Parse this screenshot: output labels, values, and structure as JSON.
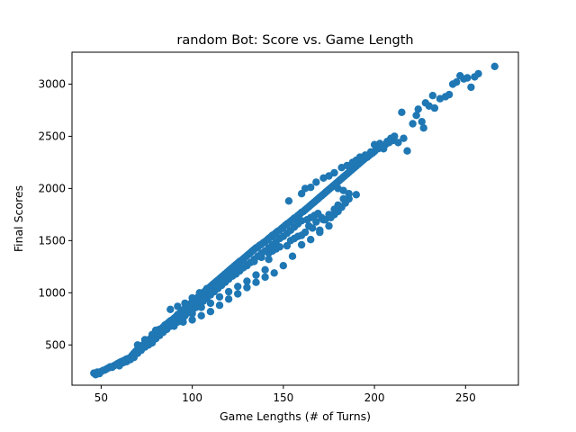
{
  "chart_data": {
    "type": "scatter",
    "title": "random Bot: Score vs. Game Length",
    "xlabel": "Game Lengths (# of Turns)",
    "ylabel": "Final Scores",
    "xlim": [
      34,
      279
    ],
    "ylim": [
      114,
      3306
    ],
    "xticks": [
      50,
      100,
      150,
      200,
      250
    ],
    "yticks": [
      500,
      1000,
      1500,
      2000,
      2500,
      3000
    ],
    "marker_color": "#1f77b4",
    "grid": false,
    "legend": "none",
    "points": [
      [
        46,
        230
      ],
      [
        47,
        215
      ],
      [
        48,
        240
      ],
      [
        49,
        225
      ],
      [
        50,
        245
      ],
      [
        51,
        255
      ],
      [
        52,
        260
      ],
      [
        53,
        270
      ],
      [
        54,
        280
      ],
      [
        55,
        290
      ],
      [
        56,
        285
      ],
      [
        57,
        300
      ],
      [
        58,
        310
      ],
      [
        59,
        320
      ],
      [
        60,
        330
      ],
      [
        61,
        340
      ],
      [
        62,
        345
      ],
      [
        63,
        355
      ],
      [
        64,
        365
      ],
      [
        65,
        370
      ],
      [
        66,
        380
      ],
      [
        67,
        400
      ],
      [
        68,
        420
      ],
      [
        69,
        440
      ],
      [
        70,
        455
      ],
      [
        71,
        470
      ],
      [
        72,
        490
      ],
      [
        73,
        500
      ],
      [
        74,
        515
      ],
      [
        75,
        530
      ],
      [
        76,
        545
      ],
      [
        77,
        560
      ],
      [
        78,
        575
      ],
      [
        79,
        590
      ],
      [
        80,
        605
      ],
      [
        81,
        620
      ],
      [
        82,
        640
      ],
      [
        83,
        655
      ],
      [
        84,
        670
      ],
      [
        85,
        690
      ],
      [
        86,
        700
      ],
      [
        87,
        715
      ],
      [
        88,
        730
      ],
      [
        89,
        740
      ],
      [
        90,
        755
      ],
      [
        91,
        770
      ],
      [
        92,
        790
      ],
      [
        93,
        800
      ],
      [
        94,
        815
      ],
      [
        95,
        830
      ],
      [
        96,
        850
      ],
      [
        97,
        865
      ],
      [
        98,
        880
      ],
      [
        99,
        895
      ],
      [
        100,
        910
      ],
      [
        101,
        925
      ],
      [
        102,
        940
      ],
      [
        103,
        955
      ],
      [
        104,
        970
      ],
      [
        105,
        985
      ],
      [
        106,
        1000
      ],
      [
        107,
        1015
      ],
      [
        108,
        1030
      ],
      [
        109,
        1045
      ],
      [
        110,
        1060
      ],
      [
        111,
        1075
      ],
      [
        112,
        1090
      ],
      [
        113,
        1105
      ],
      [
        114,
        1120
      ],
      [
        115,
        1135
      ],
      [
        116,
        1150
      ],
      [
        117,
        1165
      ],
      [
        118,
        1180
      ],
      [
        119,
        1195
      ],
      [
        120,
        1210
      ],
      [
        121,
        1225
      ],
      [
        122,
        1240
      ],
      [
        123,
        1255
      ],
      [
        124,
        1270
      ],
      [
        125,
        1285
      ],
      [
        126,
        1300
      ],
      [
        127,
        1310
      ],
      [
        128,
        1325
      ],
      [
        129,
        1340
      ],
      [
        130,
        1355
      ],
      [
        131,
        1370
      ],
      [
        132,
        1385
      ],
      [
        133,
        1400
      ],
      [
        134,
        1415
      ],
      [
        135,
        1430
      ],
      [
        136,
        1440
      ],
      [
        137,
        1455
      ],
      [
        138,
        1465
      ],
      [
        139,
        1480
      ],
      [
        140,
        1490
      ],
      [
        141,
        1505
      ],
      [
        142,
        1520
      ],
      [
        143,
        1535
      ],
      [
        144,
        1550
      ],
      [
        145,
        1560
      ],
      [
        146,
        1575
      ],
      [
        147,
        1590
      ],
      [
        148,
        1600
      ],
      [
        149,
        1615
      ],
      [
        150,
        1630
      ],
      [
        151,
        1645
      ],
      [
        152,
        1660
      ],
      [
        153,
        1670
      ],
      [
        154,
        1685
      ],
      [
        155,
        1700
      ],
      [
        156,
        1715
      ],
      [
        157,
        1725
      ],
      [
        158,
        1740
      ],
      [
        159,
        1755
      ],
      [
        160,
        1770
      ],
      [
        161,
        1780
      ],
      [
        162,
        1795
      ],
      [
        163,
        1810
      ],
      [
        164,
        1825
      ],
      [
        165,
        1840
      ],
      [
        166,
        1855
      ],
      [
        167,
        1870
      ],
      [
        168,
        1885
      ],
      [
        169,
        1900
      ],
      [
        170,
        1915
      ],
      [
        171,
        1930
      ],
      [
        172,
        1945
      ],
      [
        173,
        1960
      ],
      [
        174,
        1975
      ],
      [
        175,
        1990
      ],
      [
        176,
        2005
      ],
      [
        177,
        2020
      ],
      [
        178,
        2035
      ],
      [
        179,
        2050
      ],
      [
        180,
        2065
      ],
      [
        181,
        2080
      ],
      [
        182,
        2095
      ],
      [
        183,
        2110
      ],
      [
        184,
        2125
      ],
      [
        185,
        2140
      ],
      [
        186,
        2155
      ],
      [
        187,
        2170
      ],
      [
        188,
        2185
      ],
      [
        189,
        2200
      ],
      [
        190,
        2215
      ],
      [
        191,
        2230
      ],
      [
        192,
        2245
      ],
      [
        193,
        2260
      ],
      [
        194,
        2275
      ],
      [
        195,
        2290
      ],
      [
        196,
        2300
      ],
      [
        197,
        2315
      ],
      [
        198,
        2330
      ],
      [
        199,
        2340
      ],
      [
        200,
        2355
      ],
      [
        202,
        2380
      ],
      [
        204,
        2400
      ],
      [
        206,
        2420
      ],
      [
        208,
        2440
      ],
      [
        210,
        2460
      ],
      [
        60,
        300
      ],
      [
        62,
        330
      ],
      [
        64,
        340
      ],
      [
        66,
        360
      ],
      [
        68,
        380
      ],
      [
        70,
        420
      ],
      [
        72,
        450
      ],
      [
        74,
        480
      ],
      [
        76,
        500
      ],
      [
        78,
        520
      ],
      [
        80,
        560
      ],
      [
        82,
        590
      ],
      [
        84,
        620
      ],
      [
        86,
        650
      ],
      [
        88,
        680
      ],
      [
        90,
        700
      ],
      [
        92,
        720
      ],
      [
        94,
        750
      ],
      [
        96,
        780
      ],
      [
        98,
        810
      ],
      [
        100,
        830
      ],
      [
        102,
        860
      ],
      [
        104,
        890
      ],
      [
        106,
        920
      ],
      [
        108,
        950
      ],
      [
        110,
        980
      ],
      [
        112,
        1010
      ],
      [
        114,
        1040
      ],
      [
        116,
        1070
      ],
      [
        118,
        1100
      ],
      [
        120,
        1130
      ],
      [
        122,
        1160
      ],
      [
        124,
        1190
      ],
      [
        126,
        1210
      ],
      [
        128,
        1240
      ],
      [
        130,
        1270
      ],
      [
        132,
        1290
      ],
      [
        134,
        1320
      ],
      [
        136,
        1350
      ],
      [
        138,
        1380
      ],
      [
        140,
        1400
      ],
      [
        142,
        1430
      ],
      [
        144,
        1460
      ],
      [
        146,
        1490
      ],
      [
        148,
        1520
      ],
      [
        150,
        1540
      ],
      [
        152,
        1570
      ],
      [
        154,
        1600
      ],
      [
        156,
        1630
      ],
      [
        158,
        1660
      ],
      [
        160,
        1690
      ],
      [
        70,
        500
      ],
      [
        74,
        550
      ],
      [
        78,
        600
      ],
      [
        82,
        650
      ],
      [
        86,
        700
      ],
      [
        90,
        750
      ],
      [
        94,
        800
      ],
      [
        98,
        850
      ],
      [
        102,
        900
      ],
      [
        106,
        950
      ],
      [
        110,
        1000
      ],
      [
        114,
        1050
      ],
      [
        118,
        1120
      ],
      [
        122,
        1180
      ],
      [
        126,
        1230
      ],
      [
        130,
        1260
      ],
      [
        134,
        1300
      ],
      [
        138,
        1340
      ],
      [
        142,
        1380
      ],
      [
        146,
        1420
      ],
      [
        88,
        840
      ],
      [
        92,
        870
      ],
      [
        96,
        900
      ],
      [
        100,
        950
      ],
      [
        104,
        1000
      ],
      [
        108,
        1040
      ],
      [
        112,
        1080
      ],
      [
        116,
        1110
      ],
      [
        120,
        1150
      ],
      [
        124,
        1180
      ],
      [
        95,
        760
      ],
      [
        100,
        800
      ],
      [
        105,
        860
      ],
      [
        110,
        900
      ],
      [
        115,
        960
      ],
      [
        120,
        1010
      ],
      [
        125,
        1060
      ],
      [
        130,
        1110
      ],
      [
        135,
        1170
      ],
      [
        140,
        1220
      ],
      [
        80,
        640
      ],
      [
        85,
        660
      ],
      [
        90,
        680
      ],
      [
        95,
        720
      ],
      [
        100,
        740
      ],
      [
        105,
        780
      ],
      [
        110,
        820
      ],
      [
        115,
        880
      ],
      [
        120,
        940
      ],
      [
        125,
        990
      ],
      [
        130,
        1050
      ],
      [
        135,
        1100
      ],
      [
        140,
        1150
      ],
      [
        145,
        1190
      ],
      [
        150,
        1260
      ],
      [
        155,
        1350
      ],
      [
        160,
        1460
      ],
      [
        165,
        1510
      ],
      [
        170,
        1580
      ],
      [
        175,
        1640
      ],
      [
        158,
        1540
      ],
      [
        162,
        1580
      ],
      [
        164,
        1640
      ],
      [
        168,
        1680
      ],
      [
        172,
        1700
      ],
      [
        176,
        1720
      ],
      [
        180,
        1780
      ],
      [
        182,
        1820
      ],
      [
        184,
        1860
      ],
      [
        186,
        1900
      ],
      [
        142,
        1320
      ],
      [
        144,
        1400
      ],
      [
        148,
        1440
      ],
      [
        152,
        1450
      ],
      [
        154,
        1500
      ],
      [
        156,
        1520
      ],
      [
        160,
        1550
      ],
      [
        166,
        1620
      ],
      [
        170,
        1600
      ],
      [
        178,
        1750
      ],
      [
        163,
        1700
      ],
      [
        165,
        1720
      ],
      [
        167,
        1740
      ],
      [
        169,
        1760
      ],
      [
        171,
        1720
      ],
      [
        173,
        1700
      ],
      [
        175,
        1750
      ],
      [
        178,
        1800
      ],
      [
        180,
        1840
      ],
      [
        183,
        1900
      ],
      [
        153,
        1880
      ],
      [
        160,
        1950
      ],
      [
        162,
        2000
      ],
      [
        165,
        2010
      ],
      [
        168,
        2060
      ],
      [
        172,
        2100
      ],
      [
        175,
        2120
      ],
      [
        178,
        2150
      ],
      [
        182,
        2200
      ],
      [
        185,
        2220
      ],
      [
        188,
        2250
      ],
      [
        190,
        2270
      ],
      [
        192,
        2300
      ],
      [
        195,
        2320
      ],
      [
        198,
        2350
      ],
      [
        200,
        2420
      ],
      [
        203,
        2430
      ],
      [
        205,
        2380
      ],
      [
        207,
        2450
      ],
      [
        209,
        2480
      ],
      [
        180,
        2000
      ],
      [
        183,
        1980
      ],
      [
        186,
        1950
      ],
      [
        190,
        1940
      ],
      [
        211,
        2500
      ],
      [
        213,
        2440
      ],
      [
        216,
        2480
      ],
      [
        218,
        2360
      ],
      [
        215,
        2730
      ],
      [
        221,
        2620
      ],
      [
        223,
        2700
      ],
      [
        224,
        2760
      ],
      [
        226,
        2640
      ],
      [
        227,
        2580
      ],
      [
        228,
        2820
      ],
      [
        230,
        2790
      ],
      [
        232,
        2890
      ],
      [
        233,
        2770
      ],
      [
        236,
        2860
      ],
      [
        239,
        2880
      ],
      [
        241,
        2900
      ],
      [
        243,
        3000
      ],
      [
        245,
        3020
      ],
      [
        247,
        3080
      ],
      [
        249,
        3050
      ],
      [
        251,
        3060
      ],
      [
        253,
        2970
      ],
      [
        255,
        3070
      ],
      [
        257,
        3100
      ],
      [
        266,
        3170
      ]
    ]
  }
}
